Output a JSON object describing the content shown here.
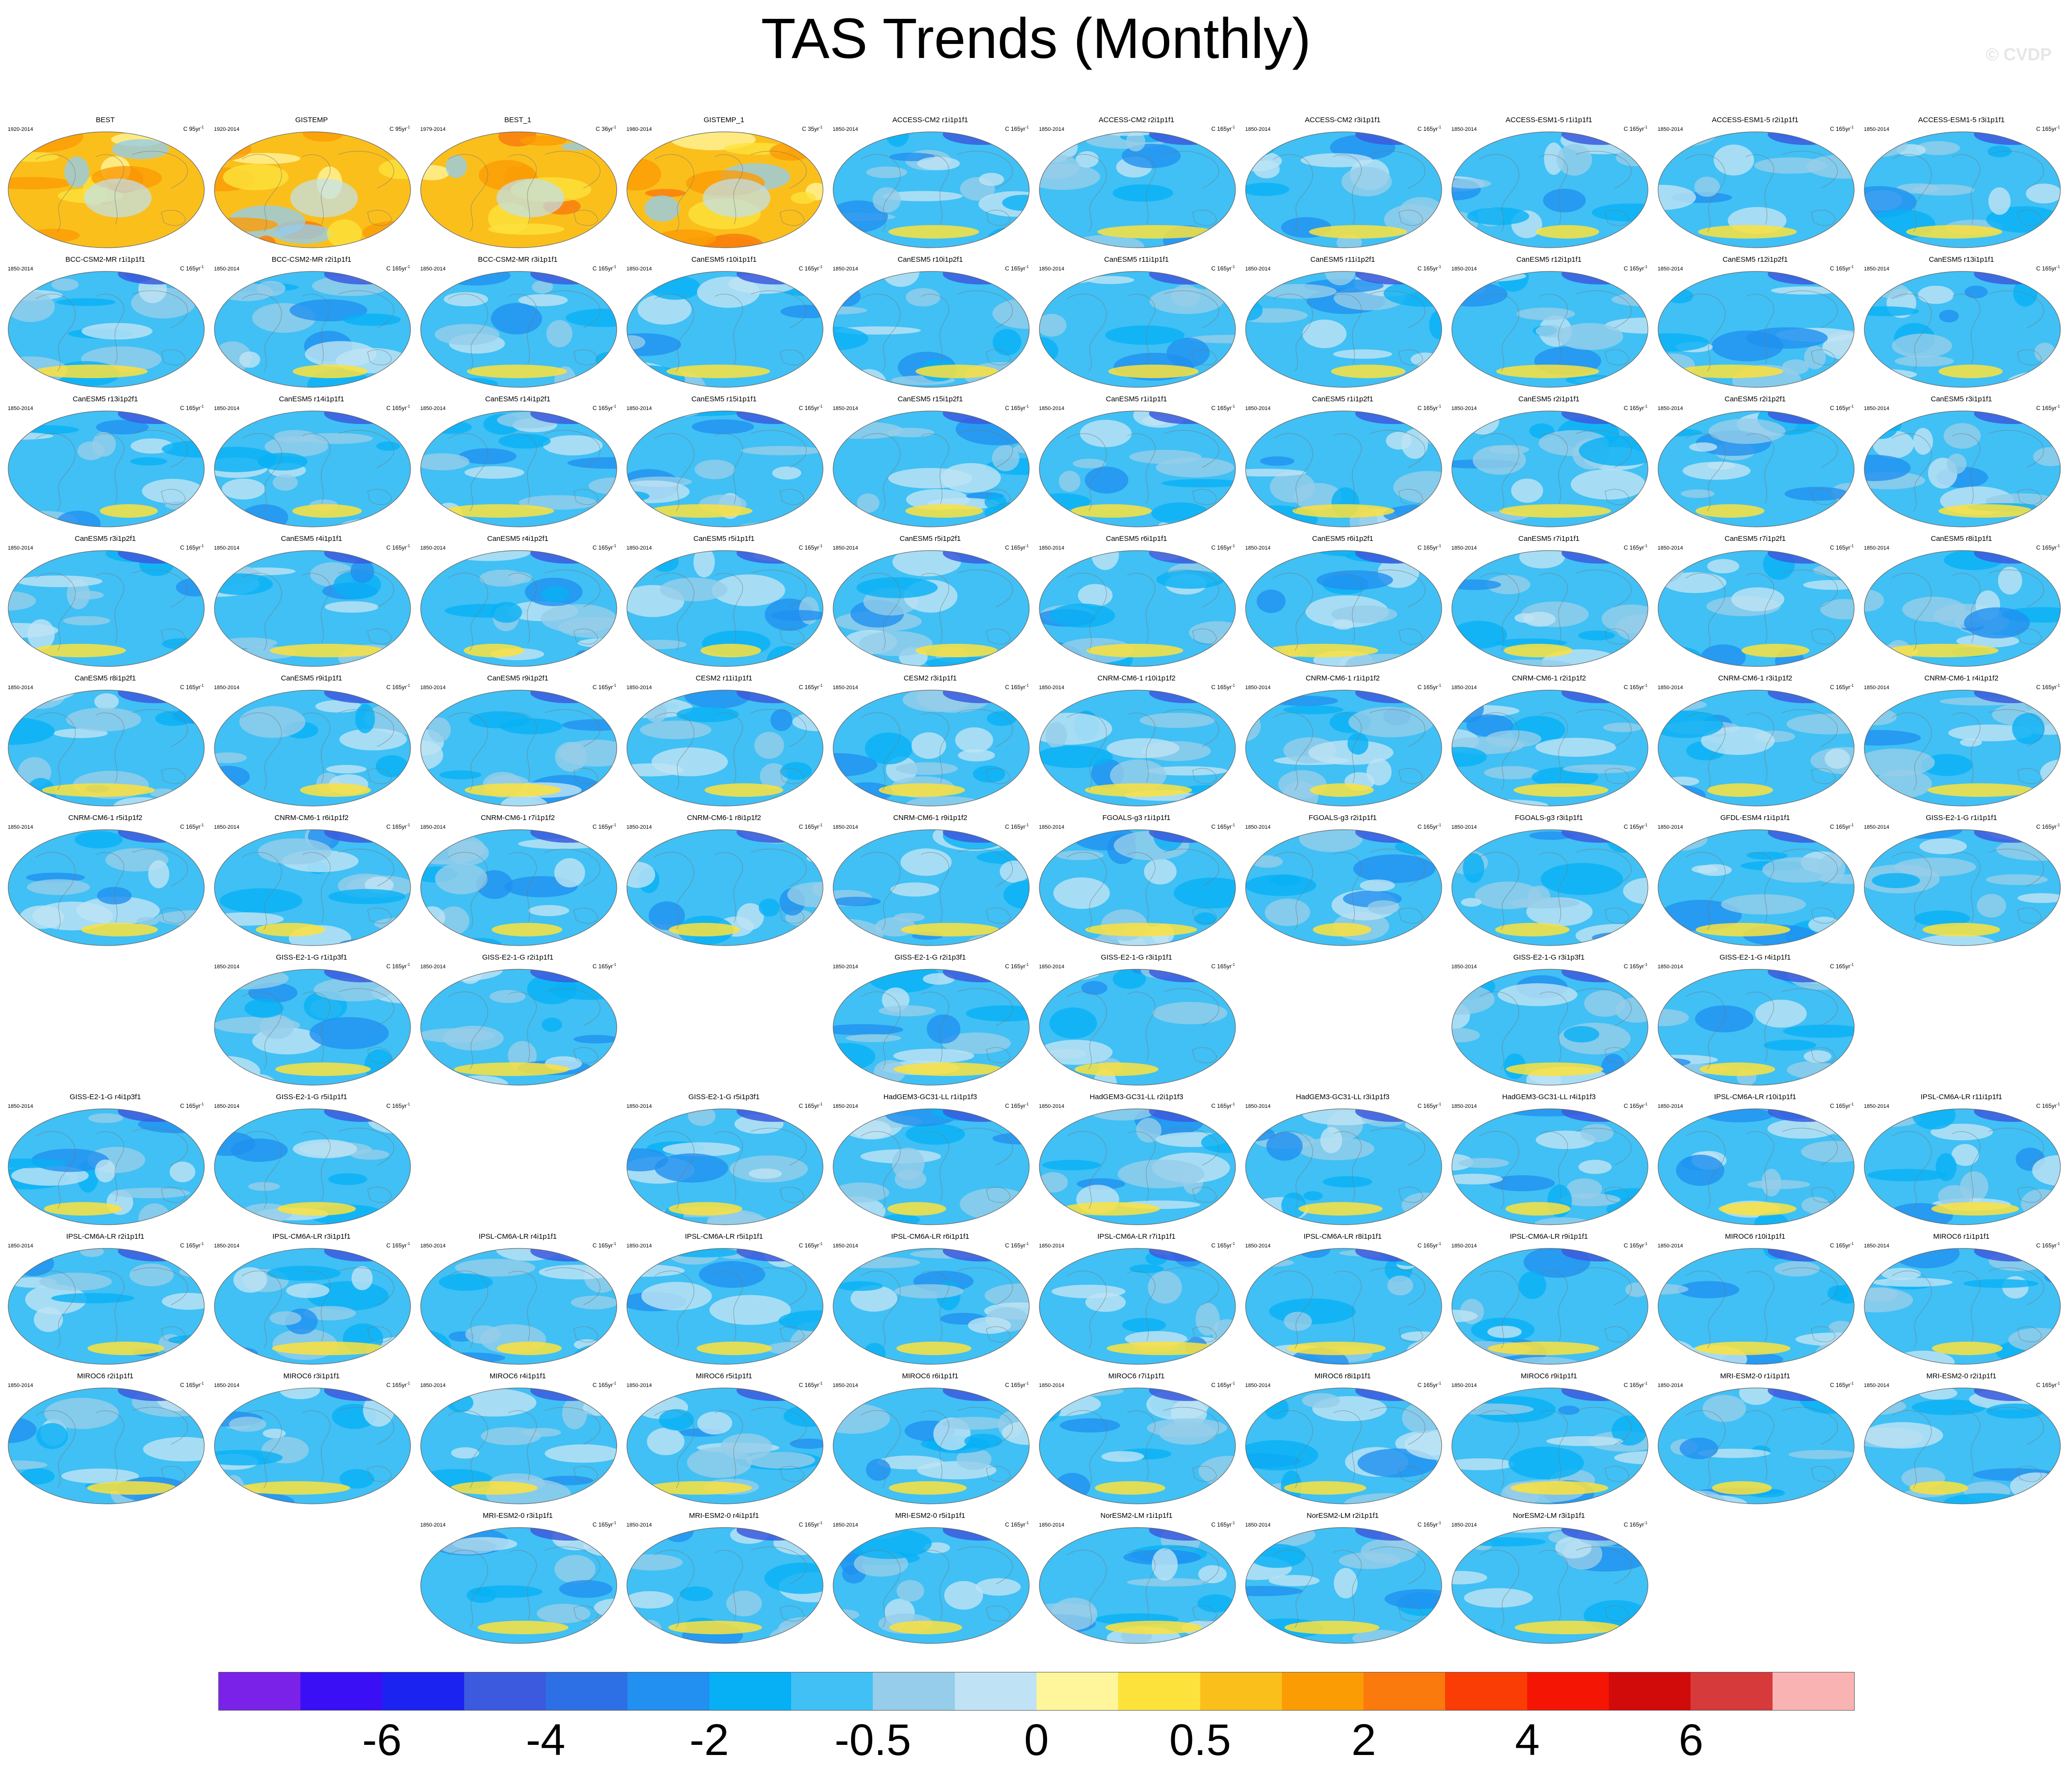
{
  "title": "TAS Trends (Monthly)",
  "watermark": "© CVDP",
  "panel_grid": {
    "rows": [
      [
        "BEST",
        "GISTEMP",
        "BEST_1",
        "GISTEMP_1",
        "ACCESS-CM2 r1i1p1f1",
        "ACCESS-CM2 r2i1p1f1",
        "ACCESS-CM2 r3i1p1f1",
        "ACCESS-ESM1-5 r1i1p1f1",
        "ACCESS-ESM1-5 r2i1p1f1",
        "ACCESS-ESM1-5 r3i1p1f1"
      ],
      [
        "BCC-CSM2-MR r1i1p1f1",
        "BCC-CSM2-MR r2i1p1f1",
        "BCC-CSM2-MR r3i1p1f1",
        "CanESM5 r10i1p1f1",
        "CanESM5 r10i1p2f1",
        "CanESM5 r11i1p1f1",
        "CanESM5 r11i1p2f1",
        "CanESM5 r12i1p1f1",
        "CanESM5 r12i1p2f1",
        "CanESM5 r13i1p1f1"
      ],
      [
        "CanESM5 r13i1p2f1",
        "CanESM5 r14i1p1f1",
        "CanESM5 r14i1p2f1",
        "CanESM5 r15i1p1f1",
        "CanESM5 r15i1p2f1",
        "CanESM5 r1i1p1f1",
        "CanESM5 r1i1p2f1",
        "CanESM5 r2i1p1f1",
        "CanESM5 r2i1p2f1",
        "CanESM5 r3i1p1f1"
      ],
      [
        "CanESM5 r3i1p2f1",
        "CanESM5 r4i1p1f1",
        "CanESM5 r4i1p2f1",
        "CanESM5 r5i1p1f1",
        "CanESM5 r5i1p2f1",
        "CanESM5 r6i1p1f1",
        "CanESM5 r6i1p2f1",
        "CanESM5 r7i1p1f1",
        "CanESM5 r7i1p2f1",
        "CanESM5 r8i1p1f1"
      ],
      [
        "CanESM5 r8i1p2f1",
        "CanESM5 r9i1p1f1",
        "CanESM5 r9i1p2f1",
        "CESM2 r11i1p1f1",
        "CESM2 r3i1p1f1",
        "CNRM-CM6-1 r10i1p1f2",
        "CNRM-CM6-1 r1i1p1f2",
        "CNRM-CM6-1 r2i1p1f2",
        "CNRM-CM6-1 r3i1p1f2",
        "CNRM-CM6-1 r4i1p1f2"
      ],
      [
        "CNRM-CM6-1 r5i1p1f2",
        "CNRM-CM6-1 r6i1p1f2",
        "CNRM-CM6-1 r7i1p1f2",
        "CNRM-CM6-1 r8i1p1f2",
        "CNRM-CM6-1 r9i1p1f2",
        "FGOALS-g3 r1i1p1f1",
        "FGOALS-g3 r2i1p1f1",
        "FGOALS-g3 r3i1p1f1",
        "GFDL-ESM4 r1i1p1f1",
        "GISS-E2-1-G r1i1p1f1"
      ],
      [
        null,
        "GISS-E2-1-G r1i1p3f1",
        "GISS-E2-1-G r2i1p1f1",
        null,
        "GISS-E2-1-G r2i1p3f1",
        "GISS-E2-1-G r3i1p1f1",
        null,
        "GISS-E2-1-G r3i1p3f1",
        "GISS-E2-1-G r4i1p1f1",
        null
      ],
      [
        "GISS-E2-1-G r4i1p3f1",
        "GISS-E2-1-G r5i1p1f1",
        null,
        "GISS-E2-1-G r5i1p3f1",
        "HadGEM3-GC31-LL r1i1p1f3",
        "HadGEM3-GC31-LL r2i1p1f3",
        "HadGEM3-GC31-LL r3i1p1f3",
        "HadGEM3-GC31-LL r4i1p1f3",
        "IPSL-CM6A-LR r10i1p1f1",
        "IPSL-CM6A-LR r11i1p1f1"
      ],
      [
        "IPSL-CM6A-LR r2i1p1f1",
        "IPSL-CM6A-LR r3i1p1f1",
        "IPSL-CM6A-LR r4i1p1f1",
        "IPSL-CM6A-LR r5i1p1f1",
        "IPSL-CM6A-LR r6i1p1f1",
        "IPSL-CM6A-LR r7i1p1f1",
        "IPSL-CM6A-LR r8i1p1f1",
        "IPSL-CM6A-LR r9i1p1f1",
        "MIROC6 r10i1p1f1",
        "MIROC6 r1i1p1f1"
      ],
      [
        "MIROC6 r2i1p1f1",
        "MIROC6 r3i1p1f1",
        "MIROC6 r4i1p1f1",
        "MIROC6 r5i1p1f1",
        "MIROC6 r6i1p1f1",
        "MIROC6 r7i1p1f1",
        "MIROC6 r8i1p1f1",
        "MIROC6 r9i1p1f1",
        "MRI-ESM2-0 r1i1p1f1",
        "MRI-ESM2-0 r2i1p1f1"
      ],
      [
        null,
        null,
        "MRI-ESM2-0 r3i1p1f1",
        "MRI-ESM2-0 r4i1p1f1",
        "MRI-ESM2-0 r5i1p1f1",
        "NorESM2-LM r1i1p1f1",
        "NorESM2-LM r2i1p1f1",
        "NorESM2-LM r3i1p1f1",
        null,
        null
      ]
    ],
    "obs_panels": {
      "BEST": {
        "years": "1920-2014",
        "unit": "C 95yr",
        "style": "warm"
      },
      "GISTEMP": {
        "years": "1920-2014",
        "unit": "C 95yr",
        "style": "warm"
      },
      "BEST_1": {
        "years": "1979-2014",
        "unit": "C 36yr",
        "style": "warm"
      },
      "GISTEMP_1": {
        "years": "1980-2014",
        "unit": "C 35yr",
        "style": "warm"
      }
    },
    "model_years": "1850-2014",
    "model_unit": "C 165yr",
    "unit_exponent": "-1"
  },
  "colorbar": {
    "colors": [
      "#7b22e8",
      "#3a0ff5",
      "#1a23f0",
      "#3c5ade",
      "#2d70e6",
      "#2190f0",
      "#07b0f5",
      "#40c0f5",
      "#96cdea",
      "#bfe3f5",
      "#fff59b",
      "#fde23c",
      "#fbbf1c",
      "#fb9c05",
      "#fa7a0e",
      "#fa3c05",
      "#f51505",
      "#d10a0a",
      "#d63a3a",
      "#fab3b3"
    ],
    "labels": [
      {
        "text": "-6",
        "edge": 2
      },
      {
        "text": "-4",
        "edge": 4
      },
      {
        "text": "-2",
        "edge": 6
      },
      {
        "text": "-0.5",
        "edge": 8
      },
      {
        "text": "0",
        "edge": 10
      },
      {
        "text": "0.5",
        "edge": 12
      },
      {
        "text": "2",
        "edge": 14
      },
      {
        "text": "4",
        "edge": 16
      },
      {
        "text": "6",
        "edge": 18
      }
    ]
  }
}
